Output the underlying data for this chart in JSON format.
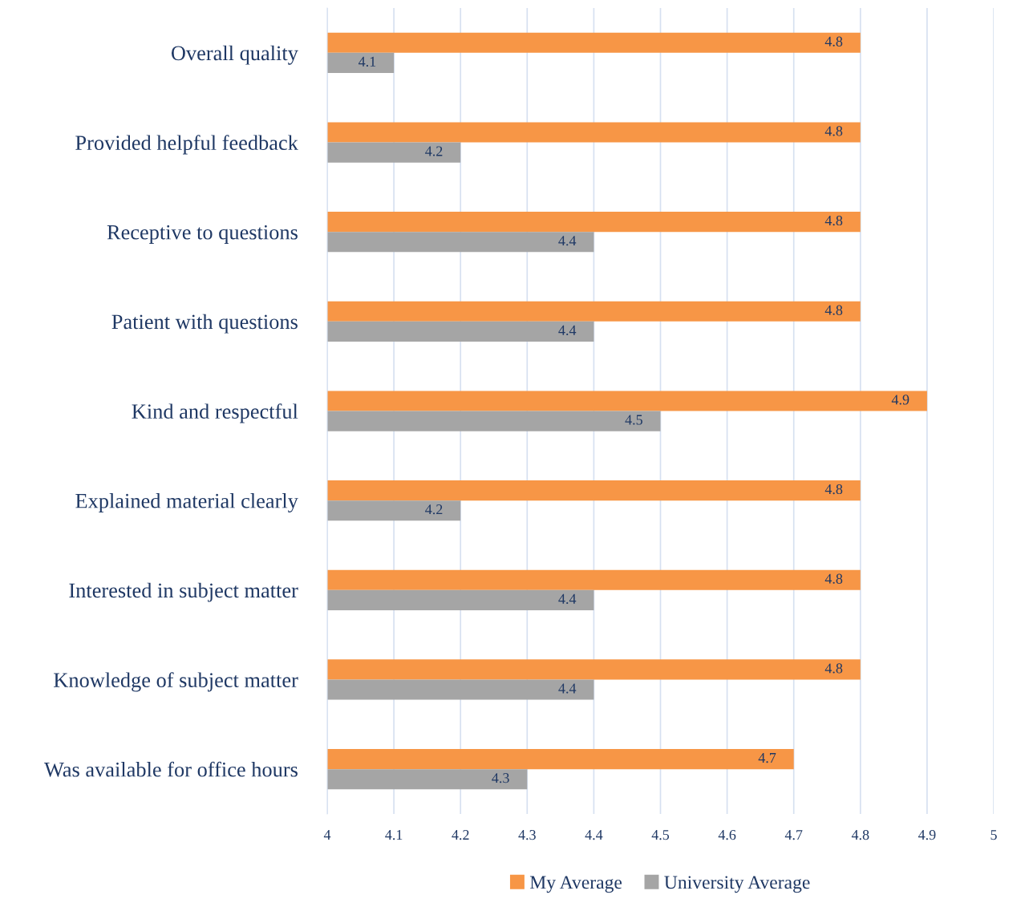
{
  "chart_data": {
    "type": "bar",
    "orientation": "horizontal",
    "categories": [
      "Overall quality",
      "Provided helpful feedback",
      "Receptive to questions",
      "Patient with questions",
      "Kind and respectful",
      "Explained material clearly",
      "Interested in subject matter",
      "Knowledge of subject matter",
      "Was available for office hours"
    ],
    "series": [
      {
        "name": "My Average",
        "color": "#f79646",
        "values": [
          4.8,
          4.8,
          4.8,
          4.8,
          4.9,
          4.8,
          4.8,
          4.8,
          4.7
        ]
      },
      {
        "name": "University Average",
        "color": "#a5a5a5",
        "values": [
          4.1,
          4.2,
          4.4,
          4.4,
          4.5,
          4.2,
          4.4,
          4.4,
          4.3
        ]
      }
    ],
    "xlim": [
      4,
      5
    ],
    "xticks": [
      4,
      4.1,
      4.2,
      4.3,
      4.4,
      4.5,
      4.6,
      4.7,
      4.8,
      4.9,
      5
    ],
    "grid": "x",
    "legend": "bottom",
    "data_labels": true
  }
}
